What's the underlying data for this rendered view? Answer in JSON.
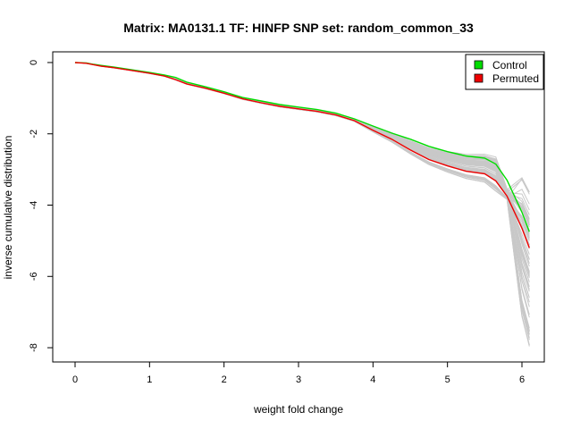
{
  "chart_data": {
    "type": "line",
    "title": "Matrix: MA0131.1 TF: HINFP SNP set: random_common_33",
    "xlabel": "weight fold change",
    "ylabel": "inverse cumulative distribution",
    "xlim": [
      -0.3,
      6.3
    ],
    "ylim": [
      -8.4,
      0.3
    ],
    "x_ticks": [
      0,
      1,
      2,
      3,
      4,
      5,
      6
    ],
    "y_ticks": [
      0,
      -2,
      -4,
      -6,
      -8
    ],
    "legend": {
      "position": "top-right",
      "entries": [
        {
          "label": "Control",
          "color": "#00dd00"
        },
        {
          "label": "Permuted",
          "color": "#ee0000"
        }
      ]
    },
    "series": [
      {
        "name": "Control",
        "color": "#00dd00",
        "x": [
          0.0,
          0.15,
          0.25,
          0.35,
          0.5,
          0.75,
          1.0,
          1.2,
          1.35,
          1.5,
          1.75,
          2.0,
          2.25,
          2.5,
          2.75,
          3.0,
          3.25,
          3.5,
          3.75,
          4.0,
          4.25,
          4.5,
          4.75,
          5.0,
          5.25,
          5.5,
          5.65,
          5.8,
          6.0,
          6.1
        ],
        "y": [
          0.0,
          -0.01,
          -0.05,
          -0.08,
          -0.12,
          -0.2,
          -0.28,
          -0.35,
          -0.42,
          -0.55,
          -0.68,
          -0.82,
          -0.98,
          -1.08,
          -1.18,
          -1.25,
          -1.32,
          -1.42,
          -1.58,
          -1.78,
          -1.98,
          -2.15,
          -2.35,
          -2.5,
          -2.62,
          -2.68,
          -2.85,
          -3.3,
          -4.2,
          -4.75
        ]
      },
      {
        "name": "Permuted",
        "color": "#ee0000",
        "x": [
          0.0,
          0.15,
          0.25,
          0.35,
          0.5,
          0.75,
          1.0,
          1.2,
          1.35,
          1.5,
          1.75,
          2.0,
          2.25,
          2.5,
          2.75,
          3.0,
          3.25,
          3.5,
          3.75,
          4.0,
          4.25,
          4.5,
          4.75,
          5.0,
          5.25,
          5.5,
          5.65,
          5.8,
          6.0,
          6.1
        ],
        "y": [
          0.0,
          -0.02,
          -0.06,
          -0.1,
          -0.14,
          -0.22,
          -0.3,
          -0.38,
          -0.48,
          -0.6,
          -0.72,
          -0.86,
          -1.02,
          -1.13,
          -1.23,
          -1.3,
          -1.37,
          -1.47,
          -1.63,
          -1.9,
          -2.15,
          -2.45,
          -2.72,
          -2.9,
          -3.05,
          -3.12,
          -3.32,
          -3.75,
          -4.65,
          -5.2
        ]
      }
    ]
  }
}
